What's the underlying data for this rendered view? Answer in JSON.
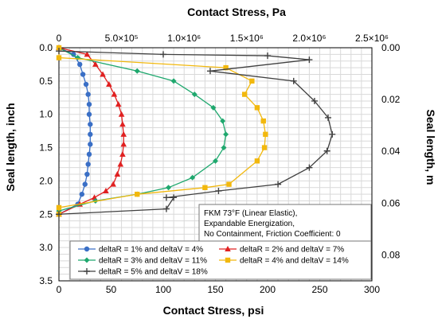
{
  "chart_data": {
    "type": "line",
    "xlabel": "Contact Stress, psi",
    "x2label": "Contact Stress, Pa",
    "ylabel": "Seal length, inch",
    "y2label": "Seal length, m",
    "xlim": [
      0,
      300
    ],
    "ylim": [
      0,
      3.5
    ],
    "x2lim": [
      0,
      2500000
    ],
    "y2lim": [
      0,
      0.09
    ],
    "x_ticks": [
      "0",
      "50",
      "100",
      "150",
      "200",
      "250",
      "300"
    ],
    "y_ticks": [
      "0.0",
      "0.5",
      "1.0",
      "1.5",
      "2.0",
      "2.5",
      "3.0",
      "3.5"
    ],
    "x2_ticks": [
      "0",
      "5.0×10⁵",
      "1.0×10⁶",
      "1.5×10⁶",
      "2.0×10⁶",
      "2.5×10⁶"
    ],
    "y2_ticks": [
      "0.00",
      "0.02",
      "0.04",
      "0.06",
      "0.08"
    ],
    "annotation": [
      "FKM 73°F (Linear Elastic),",
      "Expandable Energization,",
      "No Containment, Friction Coefficient: 0"
    ],
    "series": [
      {
        "name": "deltaR = 1%  and deltaV = 4%",
        "color": "#3a6fc6",
        "marker": "circle",
        "points": [
          [
            0,
            0.0
          ],
          [
            14,
            0.1
          ],
          [
            20,
            0.25
          ],
          [
            23,
            0.4
          ],
          [
            26,
            0.55
          ],
          [
            28,
            0.7
          ],
          [
            29,
            0.85
          ],
          [
            29,
            1.0
          ],
          [
            30,
            1.15
          ],
          [
            30,
            1.3
          ],
          [
            30,
            1.45
          ],
          [
            29,
            1.6
          ],
          [
            28,
            1.75
          ],
          [
            27,
            1.9
          ],
          [
            25,
            2.05
          ],
          [
            22,
            2.2
          ],
          [
            18,
            2.35
          ],
          [
            0,
            2.5
          ]
        ]
      },
      {
        "name": "deltaR = 2%  and deltaV = 7%",
        "color": "#e02020",
        "marker": "triangle",
        "points": [
          [
            0,
            0.0
          ],
          [
            27,
            0.1
          ],
          [
            35,
            0.25
          ],
          [
            42,
            0.4
          ],
          [
            48,
            0.55
          ],
          [
            53,
            0.7
          ],
          [
            57,
            0.85
          ],
          [
            60,
            1.0
          ],
          [
            61,
            1.15
          ],
          [
            62,
            1.3
          ],
          [
            62,
            1.45
          ],
          [
            61,
            1.6
          ],
          [
            59,
            1.75
          ],
          [
            56,
            1.9
          ],
          [
            52,
            2.05
          ],
          [
            45,
            2.15
          ],
          [
            34,
            2.25
          ],
          [
            20,
            2.35
          ],
          [
            0,
            2.5
          ]
        ]
      },
      {
        "name": "deltaR = 3%  and deltaV = 11%",
        "color": "#1fa86e",
        "marker": "diamond",
        "points": [
          [
            0,
            0.0
          ],
          [
            18,
            0.15
          ],
          [
            75,
            0.35
          ],
          [
            110,
            0.5
          ],
          [
            130,
            0.7
          ],
          [
            148,
            0.9
          ],
          [
            157,
            1.1
          ],
          [
            160,
            1.3
          ],
          [
            158,
            1.5
          ],
          [
            150,
            1.7
          ],
          [
            128,
            1.95
          ],
          [
            105,
            2.1
          ],
          [
            75,
            2.2
          ],
          [
            35,
            2.3
          ],
          [
            0,
            2.45
          ]
        ]
      },
      {
        "name": "deltaR = 4%  and deltaV = 14%",
        "color": "#f2b80d",
        "marker": "square",
        "points": [
          [
            0,
            0.0
          ],
          [
            0,
            0.15
          ],
          [
            160,
            0.3
          ],
          [
            185,
            0.5
          ],
          [
            178,
            0.7
          ],
          [
            190,
            0.9
          ],
          [
            196,
            1.1
          ],
          [
            198,
            1.3
          ],
          [
            197,
            1.5
          ],
          [
            190,
            1.7
          ],
          [
            163,
            2.05
          ],
          [
            140,
            2.1
          ],
          [
            75,
            2.2
          ],
          [
            0,
            2.4
          ],
          [
            0,
            2.5
          ]
        ]
      },
      {
        "name": "deltaR = 5%  and deltaV = 18%",
        "color": "#404040",
        "marker": "plus",
        "points": [
          [
            0,
            0.05
          ],
          [
            100,
            0.1
          ],
          [
            200,
            0.12
          ],
          [
            240,
            0.18
          ],
          [
            145,
            0.35
          ],
          [
            225,
            0.5
          ],
          [
            245,
            0.8
          ],
          [
            258,
            1.05
          ],
          [
            262,
            1.3
          ],
          [
            257,
            1.55
          ],
          [
            240,
            1.8
          ],
          [
            210,
            2.05
          ],
          [
            153,
            2.15
          ],
          [
            103,
            2.25
          ],
          [
            110,
            2.25
          ],
          [
            103,
            2.42
          ],
          [
            0,
            2.5
          ]
        ]
      }
    ]
  }
}
